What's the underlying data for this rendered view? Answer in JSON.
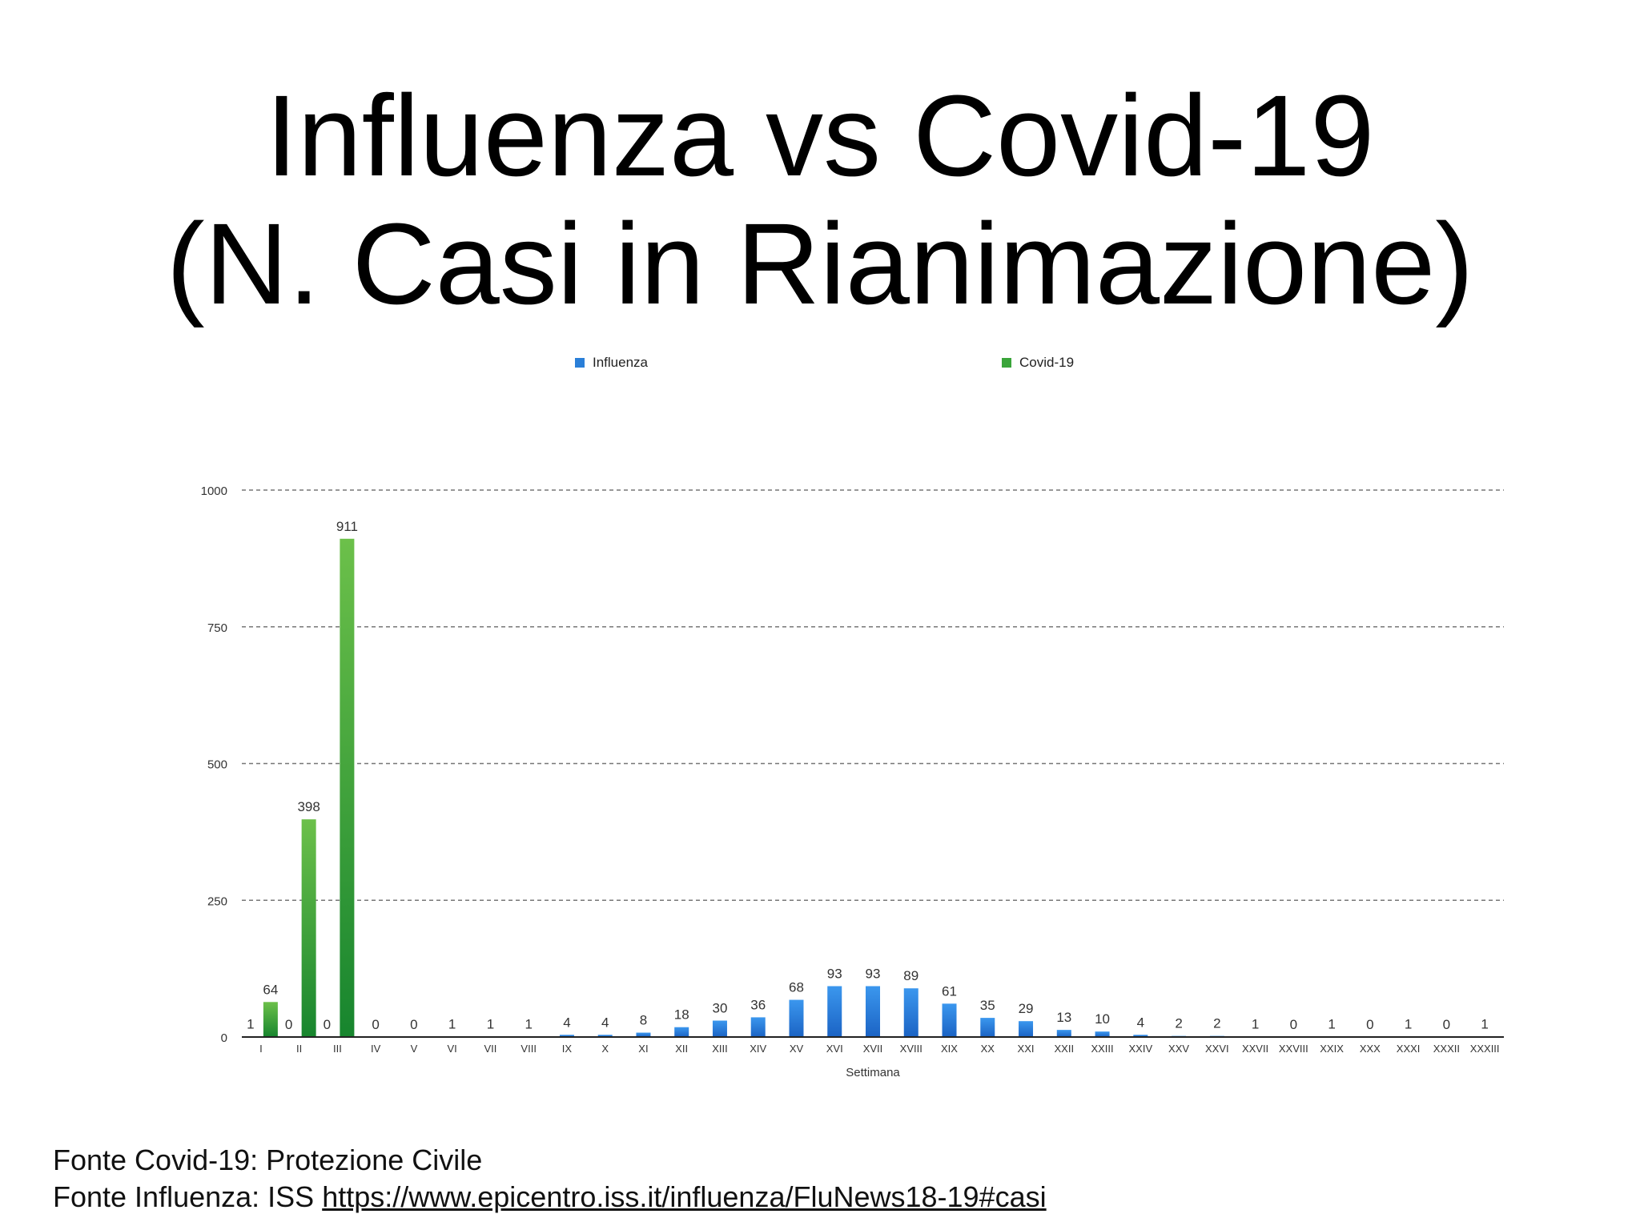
{
  "slide": {
    "title_line1": "Influenza vs Covid-19",
    "title_line2": "(N. Casi in Rianimazione)",
    "source_covid": "Fonte Covid-19: Protezione Civile",
    "source_flu_prefix": "Fonte Influenza: ISS ",
    "source_flu_link": "https://www.epicentro.iss.it/influenza/FluNews18-19#casi"
  },
  "chart_data": {
    "type": "bar",
    "xlabel": "Settimana",
    "ylabel": "",
    "ylim": [
      0,
      1000
    ],
    "yticks": [
      0,
      250,
      500,
      750,
      1000
    ],
    "grid": true,
    "legend_placement": "top",
    "categories": [
      "I",
      "II",
      "III",
      "IV",
      "V",
      "VI",
      "VII",
      "VIII",
      "IX",
      "X",
      "XI",
      "XII",
      "XIII",
      "XIV",
      "XV",
      "XVI",
      "XVII",
      "XVIII",
      "XIX",
      "XX",
      "XXI",
      "XXII",
      "XXIII",
      "XXIV",
      "XXV",
      "XXVI",
      "XXVII",
      "XXVIII",
      "XXIX",
      "XXX",
      "XXXI",
      "XXXII",
      "XXXIII"
    ],
    "series": [
      {
        "name": "Influenza",
        "color": "#2a7fd8",
        "values": [
          1,
          0,
          0,
          0,
          0,
          1,
          1,
          1,
          4,
          4,
          8,
          18,
          30,
          36,
          68,
          93,
          93,
          89,
          61,
          35,
          29,
          13,
          10,
          4,
          2,
          2,
          1,
          0,
          1,
          0,
          1,
          0,
          1
        ]
      },
      {
        "name": "Covid-19",
        "color": "#3aa53a",
        "values": [
          64,
          398,
          911,
          null,
          null,
          null,
          null,
          null,
          null,
          null,
          null,
          null,
          null,
          null,
          null,
          null,
          null,
          null,
          null,
          null,
          null,
          null,
          null,
          null,
          null,
          null,
          null,
          null,
          null,
          null,
          null,
          null,
          null
        ]
      }
    ]
  }
}
